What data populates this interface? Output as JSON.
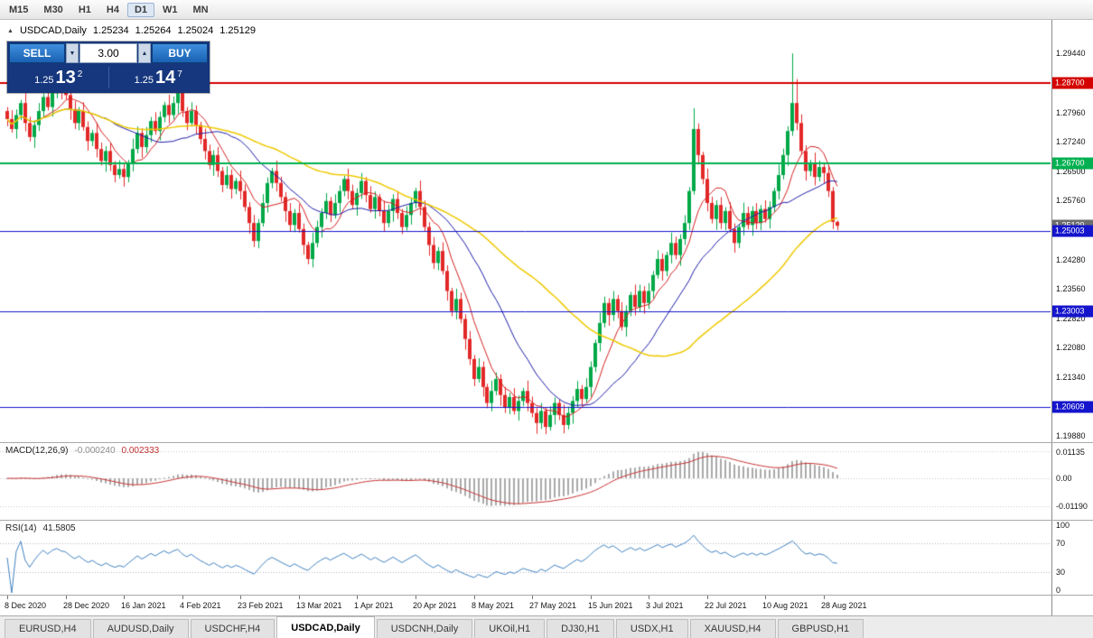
{
  "icons": {
    "chart": "▲",
    "chevron_up": "▲",
    "chevron_down": "▼"
  },
  "toolbar": {
    "timeframes": [
      {
        "label": "M15",
        "active": false
      },
      {
        "label": "M30",
        "active": false
      },
      {
        "label": "H1",
        "active": false
      },
      {
        "label": "H4",
        "active": false
      },
      {
        "label": "D1",
        "active": true
      },
      {
        "label": "W1",
        "active": false
      },
      {
        "label": "MN",
        "active": false
      }
    ]
  },
  "chart_header": {
    "symbol": "USDCAD,Daily",
    "open": "1.25234",
    "high": "1.25264",
    "low": "1.25024",
    "close": "1.25129"
  },
  "one_click": {
    "sell_label": "SELL",
    "buy_label": "BUY",
    "volume": "3.00",
    "sell_price_prefix": "1.25",
    "sell_price_big": "13",
    "sell_price_sup": "2",
    "buy_price_prefix": "1.25",
    "buy_price_big": "14",
    "buy_price_sup": "7"
  },
  "chart_data": {
    "type": "candlestick",
    "symbol": "USDCAD",
    "timeframe": "Daily",
    "price_min": 1.1972,
    "price_max": 1.3028,
    "up_color": "#00a847",
    "down_color": "#e22828",
    "y_axis_labels": [
      "1.29440",
      "1.28700",
      "1.27960",
      "1.27240",
      "1.26500",
      "1.25760",
      "1.25020",
      "1.24280",
      "1.23560",
      "1.22820",
      "1.22080",
      "1.21340",
      "1.20600",
      "1.19880"
    ],
    "x_labels": [
      {
        "i": 0,
        "label": "8 Dec 2020"
      },
      {
        "i": 13,
        "label": "28 Dec 2020"
      },
      {
        "i": 26,
        "label": "16 Jan 2021"
      },
      {
        "i": 39,
        "label": "4 Feb 2021"
      },
      {
        "i": 52,
        "label": "23 Feb 2021"
      },
      {
        "i": 65,
        "label": "13 Mar 2021"
      },
      {
        "i": 78,
        "label": "1 Apr 2021"
      },
      {
        "i": 91,
        "label": "20 Apr 2021"
      },
      {
        "i": 104,
        "label": "8 May 2021"
      },
      {
        "i": 117,
        "label": "27 May 2021"
      },
      {
        "i": 130,
        "label": "15 Jun 2021"
      },
      {
        "i": 143,
        "label": "3 Jul 2021"
      },
      {
        "i": 156,
        "label": "22 Jul 2021"
      },
      {
        "i": 169,
        "label": "10 Aug 2021"
      },
      {
        "i": 182,
        "label": "28 Aug 2021"
      }
    ],
    "moving_averages": [
      {
        "period": 8,
        "color": "#d42020",
        "width": 1
      },
      {
        "period": 21,
        "color": "#1c1ca8",
        "width": 1
      },
      {
        "period": 50,
        "color": "#eec900",
        "width": 1.5
      }
    ],
    "hlines": [
      {
        "price": 1.287,
        "color": "#d40000",
        "width": 2,
        "tag": "1.28700"
      },
      {
        "price": 1.267,
        "color": "#00b050",
        "width": 2,
        "tag": "1.26700"
      },
      {
        "price": 1.25003,
        "color": "#1414cc",
        "width": 1,
        "tag": "1.25003"
      },
      {
        "price": 1.23003,
        "color": "#1414cc",
        "width": 1,
        "tag": "1.23003"
      },
      {
        "price": 1.20609,
        "color": "#1414cc",
        "width": 1,
        "tag": "1.20609"
      }
    ],
    "current_price_tag": {
      "price": 1.25129,
      "text": "1.25129",
      "bg": "#6d6d6d"
    },
    "indicators": [
      {
        "name": "MACD",
        "title": "MACD(12,26,9)",
        "values": [
          "-0.000240",
          "0.002333"
        ],
        "params": {
          "fast": 12,
          "slow": 26,
          "signal": 9
        },
        "axis_labels": [
          "0.01135",
          "0.00",
          "-0.01190"
        ],
        "histogram_color": "#aaaaaa",
        "signal_color": "#c83232"
      },
      {
        "name": "RSI",
        "title": "RSI(14)",
        "values": [
          "41.5805"
        ],
        "period": 14,
        "levels": [
          70,
          30
        ],
        "axis_labels": [
          "100",
          "70",
          "30",
          "0"
        ],
        "line_color": "#4080c0"
      }
    ],
    "candles": [
      [
        1.28,
        1.281,
        1.2762,
        1.278
      ],
      [
        1.278,
        1.2802,
        1.2746,
        1.2755
      ],
      [
        1.2755,
        1.2804,
        1.2731,
        1.279
      ],
      [
        1.279,
        1.2828,
        1.2777,
        1.282
      ],
      [
        1.282,
        1.2846,
        1.2749,
        1.277
      ],
      [
        1.277,
        1.2786,
        1.2724,
        1.2735
      ],
      [
        1.2735,
        1.2777,
        1.2708,
        1.2765
      ],
      [
        1.2765,
        1.282,
        1.275,
        1.28
      ],
      [
        1.28,
        1.2845,
        1.2782,
        1.2835
      ],
      [
        1.2835,
        1.2857,
        1.2801,
        1.281
      ],
      [
        1.281,
        1.2859,
        1.2786,
        1.2845
      ],
      [
        1.2845,
        1.2878,
        1.2832,
        1.287
      ],
      [
        1.287,
        1.2896,
        1.2829,
        1.285
      ],
      [
        1.285,
        1.2866,
        1.2829,
        1.284
      ],
      [
        1.284,
        1.2852,
        1.2778,
        1.2805
      ],
      [
        1.2805,
        1.2825,
        1.2755,
        1.277
      ],
      [
        1.277,
        1.281,
        1.2752,
        1.28
      ],
      [
        1.28,
        1.2822,
        1.2751,
        1.276
      ],
      [
        1.276,
        1.2774,
        1.2701,
        1.2725
      ],
      [
        1.2725,
        1.2753,
        1.2712,
        1.2745
      ],
      [
        1.2745,
        1.2771,
        1.2684,
        1.2705
      ],
      [
        1.2705,
        1.2721,
        1.2664,
        1.2675
      ],
      [
        1.2675,
        1.2712,
        1.2648,
        1.27
      ],
      [
        1.27,
        1.272,
        1.265,
        1.2665
      ],
      [
        1.2665,
        1.2675,
        1.2622,
        1.264
      ],
      [
        1.264,
        1.2677,
        1.2631,
        1.2655
      ],
      [
        1.2655,
        1.2669,
        1.2611,
        1.2635
      ],
      [
        1.2635,
        1.2678,
        1.2622,
        1.267
      ],
      [
        1.267,
        1.2731,
        1.2649,
        1.2705
      ],
      [
        1.2705,
        1.2761,
        1.2694,
        1.2745
      ],
      [
        1.2745,
        1.2757,
        1.2683,
        1.271
      ],
      [
        1.271,
        1.276,
        1.2695,
        1.274
      ],
      [
        1.274,
        1.2785,
        1.2722,
        1.2775
      ],
      [
        1.2775,
        1.2797,
        1.2741,
        1.275
      ],
      [
        1.275,
        1.2799,
        1.2726,
        1.2785
      ],
      [
        1.2785,
        1.2823,
        1.2772,
        1.2815
      ],
      [
        1.2815,
        1.2841,
        1.2769,
        1.279
      ],
      [
        1.279,
        1.2836,
        1.2779,
        1.282
      ],
      [
        1.282,
        1.2857,
        1.2793,
        1.2845
      ],
      [
        1.2845,
        1.2865,
        1.2785,
        1.28
      ],
      [
        1.28,
        1.281,
        1.2752,
        1.277
      ],
      [
        1.277,
        1.2822,
        1.2761,
        1.28
      ],
      [
        1.28,
        1.2814,
        1.2741,
        1.2765
      ],
      [
        1.2765,
        1.2773,
        1.2717,
        1.273
      ],
      [
        1.273,
        1.2756,
        1.2679,
        1.27
      ],
      [
        1.27,
        1.2716,
        1.2654,
        1.2665
      ],
      [
        1.2665,
        1.2702,
        1.2638,
        1.269
      ],
      [
        1.269,
        1.271,
        1.2635,
        1.265
      ],
      [
        1.265,
        1.266,
        1.2597,
        1.2615
      ],
      [
        1.2615,
        1.2662,
        1.2606,
        1.264
      ],
      [
        1.264,
        1.2654,
        1.2581,
        1.2605
      ],
      [
        1.2605,
        1.2633,
        1.2592,
        1.2625
      ],
      [
        1.2625,
        1.2651,
        1.2579,
        1.26
      ],
      [
        1.26,
        1.2616,
        1.2549,
        1.256
      ],
      [
        1.256,
        1.2572,
        1.2493,
        1.252
      ],
      [
        1.252,
        1.254,
        1.246,
        1.2475
      ],
      [
        1.2475,
        1.253,
        1.2457,
        1.252
      ],
      [
        1.252,
        1.2592,
        1.2511,
        1.257
      ],
      [
        1.257,
        1.2634,
        1.2546,
        1.262
      ],
      [
        1.262,
        1.2658,
        1.2607,
        1.265
      ],
      [
        1.265,
        1.2676,
        1.2599,
        1.262
      ],
      [
        1.262,
        1.2636,
        1.2574,
        1.2585
      ],
      [
        1.2585,
        1.2597,
        1.2523,
        1.255
      ],
      [
        1.255,
        1.257,
        1.25,
        1.2515
      ],
      [
        1.2515,
        1.2555,
        1.2497,
        1.2545
      ],
      [
        1.2545,
        1.2567,
        1.2496,
        1.2505
      ],
      [
        1.2505,
        1.2519,
        1.2441,
        1.2465
      ],
      [
        1.2465,
        1.2473,
        1.2417,
        1.243
      ],
      [
        1.243,
        1.2496,
        1.2409,
        1.247
      ],
      [
        1.247,
        1.2526,
        1.2459,
        1.251
      ],
      [
        1.251,
        1.2557,
        1.2483,
        1.2545
      ],
      [
        1.2545,
        1.2595,
        1.253,
        1.2575
      ],
      [
        1.2575,
        1.2585,
        1.2522,
        1.254
      ],
      [
        1.254,
        1.2592,
        1.2531,
        1.257
      ],
      [
        1.257,
        1.2614,
        1.2546,
        1.26
      ],
      [
        1.26,
        1.2638,
        1.2587,
        1.263
      ],
      [
        1.263,
        1.2656,
        1.2579,
        1.26
      ],
      [
        1.26,
        1.2616,
        1.2554,
        1.2565
      ],
      [
        1.2565,
        1.2607,
        1.2538,
        1.2595
      ],
      [
        1.2595,
        1.2645,
        1.258,
        1.2625
      ],
      [
        1.2625,
        1.2635,
        1.2572,
        1.259
      ],
      [
        1.259,
        1.2612,
        1.2546,
        1.2555
      ],
      [
        1.2555,
        1.2599,
        1.2531,
        1.2585
      ],
      [
        1.2585,
        1.2593,
        1.2537,
        1.255
      ],
      [
        1.255,
        1.2576,
        1.2499,
        1.252
      ],
      [
        1.252,
        1.2566,
        1.2509,
        1.255
      ],
      [
        1.255,
        1.2592,
        1.2523,
        1.258
      ],
      [
        1.258,
        1.26,
        1.253,
        1.2545
      ],
      [
        1.2545,
        1.2555,
        1.2492,
        1.251
      ],
      [
        1.251,
        1.2562,
        1.2501,
        1.254
      ],
      [
        1.254,
        1.2584,
        1.2516,
        1.257
      ],
      [
        1.257,
        1.2608,
        1.2557,
        1.26
      ],
      [
        1.26,
        1.2626,
        1.2539,
        1.256
      ],
      [
        1.256,
        1.2576,
        1.2499,
        1.251
      ],
      [
        1.251,
        1.2522,
        1.2438,
        1.2465
      ],
      [
        1.2465,
        1.2485,
        1.2405,
        1.242
      ],
      [
        1.242,
        1.246,
        1.2402,
        1.245
      ],
      [
        1.245,
        1.2472,
        1.2391,
        1.24
      ],
      [
        1.24,
        1.2414,
        1.2326,
        1.235
      ],
      [
        1.235,
        1.2358,
        1.2287,
        1.23
      ],
      [
        1.23,
        1.2356,
        1.2279,
        1.233
      ],
      [
        1.233,
        1.2346,
        1.2269,
        1.228
      ],
      [
        1.228,
        1.2292,
        1.2203,
        1.223
      ],
      [
        1.223,
        1.225,
        1.2165,
        1.218
      ],
      [
        1.218,
        1.219,
        1.2112,
        1.213
      ],
      [
        1.213,
        1.2182,
        1.2121,
        1.216
      ],
      [
        1.216,
        1.2174,
        1.2086,
        1.211
      ],
      [
        1.211,
        1.2118,
        1.2057,
        1.207
      ],
      [
        1.207,
        1.2126,
        1.2049,
        1.21
      ],
      [
        1.21,
        1.2146,
        1.2089,
        1.213
      ],
      [
        1.213,
        1.2142,
        1.2063,
        1.209
      ],
      [
        1.209,
        1.211,
        1.2045,
        1.206
      ],
      [
        1.206,
        1.2095,
        1.2042,
        1.2085
      ],
      [
        1.2085,
        1.2107,
        1.2041,
        1.205
      ],
      [
        1.205,
        1.2089,
        1.2026,
        1.2075
      ],
      [
        1.2075,
        1.2108,
        1.2062,
        1.21
      ],
      [
        1.21,
        1.2126,
        1.2049,
        1.207
      ],
      [
        1.207,
        1.2086,
        1.2034,
        1.2045
      ],
      [
        1.2045,
        1.2057,
        1.1993,
        1.202
      ],
      [
        1.202,
        1.207,
        1.2005,
        1.205
      ],
      [
        1.205,
        1.206,
        1.1992,
        1.201
      ],
      [
        1.201,
        1.2062,
        1.2001,
        1.204
      ],
      [
        1.204,
        1.2084,
        1.2016,
        1.207
      ],
      [
        1.207,
        1.2078,
        1.2027,
        1.204
      ],
      [
        1.204,
        1.2066,
        1.1994,
        1.2015
      ],
      [
        1.2015,
        1.2061,
        1.2004,
        1.2045
      ],
      [
        1.2045,
        1.2087,
        1.2018,
        1.2075
      ],
      [
        1.2075,
        1.2125,
        1.206,
        1.2105
      ],
      [
        1.2105,
        1.2115,
        1.2062,
        1.208
      ],
      [
        1.208,
        1.2132,
        1.2071,
        1.211
      ],
      [
        1.211,
        1.2174,
        1.2086,
        1.216
      ],
      [
        1.216,
        1.2228,
        1.2147,
        1.222
      ],
      [
        1.222,
        1.2296,
        1.2199,
        1.227
      ],
      [
        1.227,
        1.2336,
        1.2259,
        1.232
      ],
      [
        1.232,
        1.2332,
        1.2263,
        1.229
      ],
      [
        1.229,
        1.235,
        1.2275,
        1.233
      ],
      [
        1.233,
        1.234,
        1.2282,
        1.23
      ],
      [
        1.23,
        1.2322,
        1.2251,
        1.226
      ],
      [
        1.226,
        1.2314,
        1.2236,
        1.23
      ],
      [
        1.23,
        1.2348,
        1.2287,
        1.234
      ],
      [
        1.234,
        1.2366,
        1.2289,
        1.231
      ],
      [
        1.231,
        1.2366,
        1.2299,
        1.235
      ],
      [
        1.235,
        1.2362,
        1.2293,
        1.232
      ],
      [
        1.232,
        1.237,
        1.2305,
        1.235
      ],
      [
        1.235,
        1.24,
        1.2332,
        1.239
      ],
      [
        1.239,
        1.2452,
        1.2381,
        1.243
      ],
      [
        1.243,
        1.2444,
        1.2376,
        1.24
      ],
      [
        1.24,
        1.2448,
        1.2387,
        1.244
      ],
      [
        1.244,
        1.2496,
        1.2419,
        1.247
      ],
      [
        1.247,
        1.2486,
        1.2429,
        1.244
      ],
      [
        1.244,
        1.2492,
        1.2413,
        1.248
      ],
      [
        1.248,
        1.254,
        1.2465,
        1.252
      ],
      [
        1.252,
        1.261,
        1.2502,
        1.26
      ],
      [
        1.26,
        1.2807,
        1.2591,
        1.2755
      ],
      [
        1.2755,
        1.2769,
        1.2666,
        1.269
      ],
      [
        1.269,
        1.2698,
        1.2617,
        1.263
      ],
      [
        1.263,
        1.2656,
        1.2549,
        1.257
      ],
      [
        1.257,
        1.2586,
        1.2519,
        1.253
      ],
      [
        1.253,
        1.2577,
        1.2503,
        1.2565
      ],
      [
        1.2565,
        1.2585,
        1.2505,
        1.252
      ],
      [
        1.252,
        1.256,
        1.2502,
        1.255
      ],
      [
        1.255,
        1.2572,
        1.2496,
        1.2505
      ],
      [
        1.2505,
        1.2519,
        1.2446,
        1.247
      ],
      [
        1.247,
        1.2518,
        1.2457,
        1.251
      ],
      [
        1.251,
        1.2571,
        1.2489,
        1.2545
      ],
      [
        1.2545,
        1.2561,
        1.2504,
        1.2515
      ],
      [
        1.2515,
        1.2562,
        1.2488,
        1.255
      ],
      [
        1.255,
        1.257,
        1.2505,
        1.252
      ],
      [
        1.252,
        1.2565,
        1.2502,
        1.2555
      ],
      [
        1.2555,
        1.2577,
        1.2521,
        1.253
      ],
      [
        1.253,
        1.2574,
        1.2506,
        1.256
      ],
      [
        1.256,
        1.2608,
        1.2547,
        1.26
      ],
      [
        1.26,
        1.2666,
        1.2579,
        1.264
      ],
      [
        1.264,
        1.2706,
        1.2629,
        1.269
      ],
      [
        1.269,
        1.2762,
        1.2663,
        1.275
      ],
      [
        1.275,
        1.2944,
        1.2738,
        1.282
      ],
      [
        1.282,
        1.288,
        1.2752,
        1.277
      ],
      [
        1.277,
        1.2792,
        1.2691,
        1.27
      ],
      [
        1.27,
        1.2714,
        1.2626,
        1.265
      ],
      [
        1.265,
        1.2678,
        1.2637,
        1.267
      ],
      [
        1.267,
        1.2696,
        1.2614,
        1.2635
      ],
      [
        1.2635,
        1.2676,
        1.2624,
        1.266
      ],
      [
        1.266,
        1.2672,
        1.2618,
        1.2645
      ],
      [
        1.2645,
        1.2665,
        1.2585,
        1.26
      ],
      [
        1.26,
        1.261,
        1.2505,
        1.2523
      ],
      [
        1.2523,
        1.2526,
        1.2502,
        1.2513
      ]
    ]
  },
  "tabs": [
    {
      "label": "EURUSD,H4",
      "active": false
    },
    {
      "label": "AUDUSD,Daily",
      "active": false
    },
    {
      "label": "USDCHF,H4",
      "active": false
    },
    {
      "label": "USDCAD,Daily",
      "active": true
    },
    {
      "label": "USDCNH,Daily",
      "active": false
    },
    {
      "label": "UKOil,H1",
      "active": false
    },
    {
      "label": "DJ30,H1",
      "active": false
    },
    {
      "label": "USDX,H1",
      "active": false
    },
    {
      "label": "XAUUSD,H4",
      "active": false
    },
    {
      "label": "GBPUSD,H1",
      "active": false
    }
  ]
}
